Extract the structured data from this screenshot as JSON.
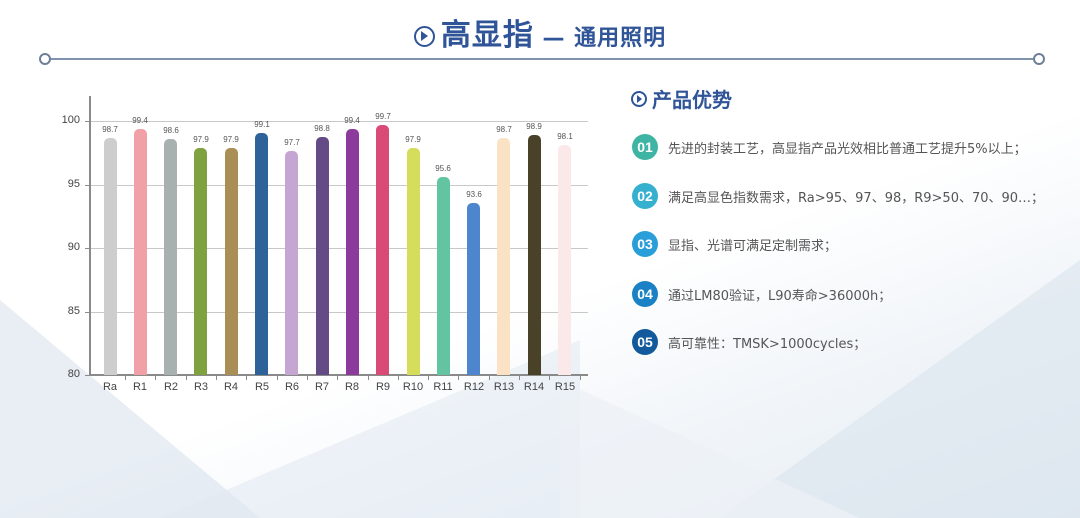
{
  "header": {
    "icon": "circle-arrow-right-icon",
    "title_main": "高显指",
    "title_sep": " — ",
    "title_sub": "通用照明"
  },
  "advantages": {
    "icon": "circle-arrow-right-icon",
    "title": "产品优势",
    "items": [
      {
        "num": "01",
        "color": "#3eb4a5",
        "text": "先进的封装工艺，高显指产品光效相比普通工艺提升5%以上；"
      },
      {
        "num": "02",
        "color": "#35b0cf",
        "text": "满足高显色指数需求，Ra>95、97、98，R9>50、70、90…；"
      },
      {
        "num": "03",
        "color": "#2a9ed8",
        "text": "显指、光谱可满足定制需求；"
      },
      {
        "num": "04",
        "color": "#1a82c4",
        "text": "通过LM80验证，L90寿命>36000h；"
      },
      {
        "num": "05",
        "color": "#125a9c",
        "text": "高可靠性：TMSK>1000cycles；"
      }
    ]
  },
  "chart_data": {
    "type": "bar",
    "title": "",
    "xlabel": "",
    "ylabel": "",
    "ylim": [
      80,
      102
    ],
    "yticks": [
      80,
      85,
      90,
      95,
      100
    ],
    "grid": true,
    "legend": false,
    "categories": [
      "Ra",
      "R1",
      "R2",
      "R3",
      "R4",
      "R5",
      "R6",
      "R7",
      "R8",
      "R9",
      "R10",
      "R11",
      "R12",
      "R13",
      "R14",
      "R15"
    ],
    "values": [
      98.7,
      99.4,
      98.6,
      97.9,
      97.9,
      99.1,
      97.7,
      98.8,
      99.4,
      99.7,
      97.9,
      95.6,
      93.6,
      98.7,
      98.9,
      98.1
    ],
    "value_labels": [
      "98.7",
      "99.4",
      "98.6",
      "97.9",
      "97.9",
      "99.1",
      "97.7",
      "98.8",
      "99.4",
      "99.7",
      "97.9",
      "95.6",
      "93.6",
      "98.7",
      "98.9",
      "98.1"
    ],
    "colors": [
      "#cdcdcd",
      "#f0a0a6",
      "#a9b1b0",
      "#7da23f",
      "#a98f56",
      "#2e6399",
      "#c5a6d3",
      "#654b85",
      "#8c3a9b",
      "#d94a76",
      "#d6dd5a",
      "#62c4a0",
      "#4d86cc",
      "#fbe2c4",
      "#4a4228",
      "#fbe9ea"
    ]
  }
}
